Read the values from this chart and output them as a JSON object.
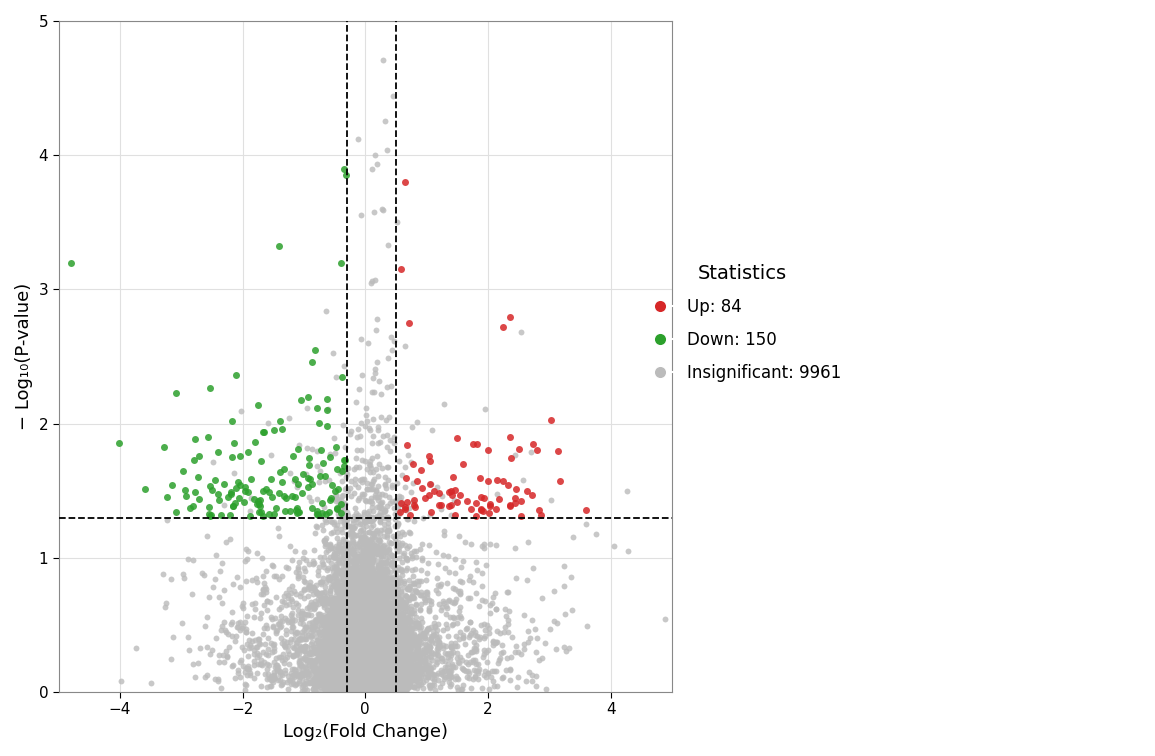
{
  "title": "",
  "xlabel": "Log₂(Fold Change)",
  "ylabel": "− Log₁₀(P-value)",
  "xlim": [
    -5.0,
    5.0
  ],
  "ylim": [
    0,
    5.0
  ],
  "xticks": [
    -4,
    -2,
    0,
    2,
    4
  ],
  "yticks": [
    0,
    1,
    2,
    3,
    4,
    5
  ],
  "fc_thresh_low": -0.3,
  "fc_thresh_high": 0.5,
  "pval_thresh": 1.3,
  "color_up": "#D62728",
  "color_down": "#2CA02C",
  "color_insig": "#BBBBBB",
  "n_up": 84,
  "n_down": 150,
  "n_insig": 9961,
  "legend_title": "Statistics",
  "legend_up": "Up: 84",
  "legend_down": "Down: 150",
  "legend_insig": "Insignificant: 9961",
  "point_size": 18,
  "point_alpha": 0.8,
  "background_color": "#FFFFFF",
  "grid_color": "#E0E0E0",
  "seed": 123
}
